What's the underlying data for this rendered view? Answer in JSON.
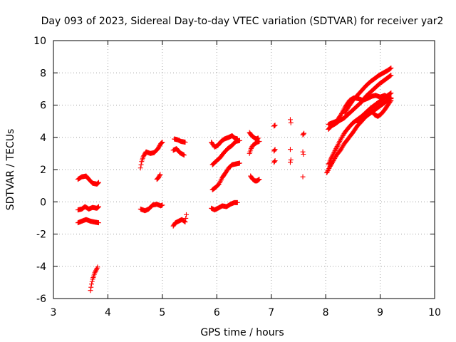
{
  "chart_data": {
    "type": "scatter",
    "title": "Day 093 of 2023, Sidereal Day-to-day VTEC variation (SDTVAR) for receiver yar2",
    "xlabel": "GPS time / hours",
    "ylabel": "SDTVAR / TECUs",
    "xlim": [
      3,
      10
    ],
    "ylim": [
      -6,
      10
    ],
    "xticks": [
      3,
      4,
      5,
      6,
      7,
      8,
      9,
      10
    ],
    "yticks": [
      -6,
      -4,
      -2,
      0,
      2,
      4,
      6,
      8,
      10
    ],
    "grid": true,
    "marker": "plus",
    "color": "#ff0000",
    "segments": [
      [
        [
          3.45,
          1.4
        ],
        [
          3.52,
          1.55
        ],
        [
          3.6,
          1.6
        ],
        [
          3.65,
          1.4
        ],
        [
          3.72,
          1.15
        ],
        [
          3.8,
          1.1
        ],
        [
          3.83,
          1.2
        ]
      ],
      [
        [
          3.45,
          -0.5
        ],
        [
          3.52,
          -0.45
        ],
        [
          3.58,
          -0.3
        ],
        [
          3.65,
          -0.45
        ],
        [
          3.72,
          -0.35
        ],
        [
          3.8,
          -0.4
        ],
        [
          3.83,
          -0.3
        ]
      ],
      [
        [
          3.45,
          -1.3
        ],
        [
          3.52,
          -1.2
        ],
        [
          3.6,
          -1.1
        ],
        [
          3.68,
          -1.2
        ],
        [
          3.75,
          -1.25
        ],
        [
          3.83,
          -1.3
        ]
      ],
      [
        [
          3.68,
          -5.5
        ],
        [
          3.7,
          -5.1
        ],
        [
          3.72,
          -4.8
        ],
        [
          3.74,
          -4.6
        ],
        [
          3.76,
          -4.4
        ],
        [
          3.79,
          -4.2
        ],
        [
          3.81,
          -4.05
        ]
      ],
      [
        [
          4.6,
          2.1
        ],
        [
          4.62,
          2.5
        ],
        [
          4.65,
          2.8
        ],
        [
          4.7,
          3.1
        ],
        [
          4.78,
          3.0
        ],
        [
          4.85,
          3.05
        ],
        [
          4.92,
          3.3
        ],
        [
          4.97,
          3.6
        ],
        [
          5.0,
          3.7
        ]
      ],
      [
        [
          4.9,
          1.4
        ],
        [
          4.93,
          1.5
        ],
        [
          4.96,
          1.7
        ]
      ],
      [
        [
          4.6,
          -0.45
        ],
        [
          4.68,
          -0.55
        ],
        [
          4.75,
          -0.45
        ],
        [
          4.82,
          -0.2
        ],
        [
          4.9,
          -0.15
        ],
        [
          4.97,
          -0.25
        ],
        [
          5.0,
          -0.2
        ]
      ],
      [
        [
          5.22,
          3.9
        ],
        [
          5.28,
          3.85
        ],
        [
          5.34,
          3.75
        ],
        [
          5.42,
          3.7
        ]
      ],
      [
        [
          5.2,
          3.2
        ],
        [
          5.26,
          3.3
        ],
        [
          5.32,
          3.05
        ],
        [
          5.4,
          2.9
        ]
      ],
      [
        [
          5.2,
          -1.5
        ],
        [
          5.24,
          -1.3
        ],
        [
          5.3,
          -1.2
        ],
        [
          5.36,
          -1.1
        ],
        [
          5.42,
          -1.25
        ],
        [
          5.44,
          -0.8
        ]
      ],
      [
        [
          5.9,
          3.7
        ],
        [
          5.96,
          3.4
        ],
        [
          6.02,
          3.5
        ],
        [
          6.08,
          3.75
        ],
        [
          6.14,
          3.9
        ],
        [
          6.22,
          4.0
        ],
        [
          6.28,
          4.1
        ],
        [
          6.33,
          3.95
        ],
        [
          6.38,
          3.9
        ]
      ],
      [
        [
          5.92,
          2.3
        ],
        [
          5.98,
          2.5
        ],
        [
          6.05,
          2.7
        ],
        [
          6.12,
          3.0
        ],
        [
          6.2,
          3.3
        ],
        [
          6.28,
          3.5
        ],
        [
          6.35,
          3.75
        ],
        [
          6.42,
          3.8
        ]
      ],
      [
        [
          5.92,
          0.75
        ],
        [
          5.98,
          0.9
        ],
        [
          6.04,
          1.1
        ],
        [
          6.1,
          1.5
        ],
        [
          6.16,
          1.8
        ],
        [
          6.22,
          2.1
        ],
        [
          6.28,
          2.3
        ],
        [
          6.35,
          2.35
        ],
        [
          6.42,
          2.4
        ]
      ],
      [
        [
          5.9,
          -0.4
        ],
        [
          5.96,
          -0.5
        ],
        [
          6.02,
          -0.4
        ],
        [
          6.1,
          -0.25
        ],
        [
          6.18,
          -0.3
        ],
        [
          6.25,
          -0.15
        ],
        [
          6.32,
          -0.05
        ],
        [
          6.38,
          -0.05
        ]
      ],
      [
        [
          6.6,
          4.3
        ],
        [
          6.64,
          4.1
        ],
        [
          6.68,
          4.0
        ],
        [
          6.72,
          3.9
        ],
        [
          6.76,
          3.95
        ]
      ],
      [
        [
          6.6,
          3.0
        ],
        [
          6.63,
          3.3
        ],
        [
          6.66,
          3.5
        ],
        [
          6.7,
          3.6
        ],
        [
          6.74,
          3.7
        ],
        [
          6.78,
          3.75
        ]
      ],
      [
        [
          6.62,
          1.6
        ],
        [
          6.66,
          1.4
        ],
        [
          6.7,
          1.3
        ],
        [
          6.74,
          1.3
        ],
        [
          6.78,
          1.4
        ]
      ],
      [
        [
          7.05,
          4.7
        ],
        [
          7.07,
          4.75
        ]
      ],
      [
        [
          7.05,
          3.15
        ],
        [
          7.07,
          3.25
        ]
      ],
      [
        [
          7.05,
          2.45
        ],
        [
          7.07,
          2.55
        ]
      ],
      [
        [
          7.35,
          5.1
        ],
        [
          7.36,
          4.9
        ]
      ],
      [
        [
          7.35,
          3.25
        ]
      ],
      [
        [
          7.35,
          2.45
        ],
        [
          7.36,
          2.6
        ]
      ],
      [
        [
          7.58,
          4.15
        ],
        [
          7.6,
          4.25
        ]
      ],
      [
        [
          7.58,
          3.1
        ],
        [
          7.59,
          2.95
        ]
      ],
      [
        [
          7.58,
          1.55
        ]
      ],
      [
        [
          8.05,
          4.8
        ],
        [
          8.12,
          4.9
        ],
        [
          8.2,
          5.0
        ],
        [
          8.28,
          5.4
        ],
        [
          8.36,
          5.9
        ],
        [
          8.44,
          6.3
        ],
        [
          8.52,
          6.45
        ],
        [
          8.6,
          6.4
        ],
        [
          8.68,
          6.3
        ],
        [
          8.76,
          6.4
        ],
        [
          8.85,
          6.55
        ],
        [
          8.92,
          6.6
        ],
        [
          9.0,
          6.5
        ],
        [
          9.08,
          6.6
        ],
        [
          9.15,
          6.5
        ],
        [
          9.2,
          6.4
        ]
      ],
      [
        [
          8.05,
          4.5
        ],
        [
          8.1,
          4.7
        ],
        [
          8.18,
          4.85
        ],
        [
          8.26,
          5.05
        ],
        [
          8.34,
          5.2
        ],
        [
          8.42,
          5.45
        ],
        [
          8.5,
          5.7
        ],
        [
          8.58,
          5.95
        ],
        [
          8.66,
          6.2
        ],
        [
          8.74,
          6.55
        ],
        [
          8.82,
          6.8
        ],
        [
          8.9,
          7.05
        ],
        [
          8.98,
          7.3
        ],
        [
          9.06,
          7.5
        ],
        [
          9.14,
          7.7
        ],
        [
          9.2,
          7.85
        ]
      ],
      [
        [
          8.05,
          2.3
        ],
        [
          8.1,
          2.7
        ],
        [
          8.16,
          3.1
        ],
        [
          8.22,
          3.5
        ],
        [
          8.28,
          3.9
        ],
        [
          8.35,
          4.3
        ],
        [
          8.42,
          4.6
        ],
        [
          8.5,
          4.9
        ],
        [
          8.58,
          5.1
        ],
        [
          8.66,
          5.3
        ],
        [
          8.74,
          5.55
        ],
        [
          8.82,
          5.8
        ],
        [
          8.9,
          6.0
        ],
        [
          8.98,
          6.2
        ],
        [
          9.06,
          6.4
        ],
        [
          9.14,
          6.6
        ],
        [
          9.2,
          6.75
        ]
      ],
      [
        [
          8.02,
          1.8
        ],
        [
          8.08,
          2.2
        ],
        [
          8.14,
          2.55
        ],
        [
          8.2,
          2.9
        ],
        [
          8.27,
          3.2
        ],
        [
          8.34,
          3.6
        ],
        [
          8.42,
          3.95
        ],
        [
          8.5,
          4.3
        ],
        [
          8.58,
          4.7
        ],
        [
          8.66,
          5.0
        ],
        [
          8.74,
          5.3
        ],
        [
          8.82,
          5.5
        ],
        [
          8.9,
          5.7
        ],
        [
          8.98,
          5.9
        ],
        [
          9.06,
          6.1
        ],
        [
          9.14,
          6.3
        ],
        [
          9.2,
          6.45
        ]
      ],
      [
        [
          8.35,
          5.5
        ],
        [
          8.42,
          5.9
        ],
        [
          8.5,
          6.3
        ],
        [
          8.58,
          6.6
        ],
        [
          8.66,
          6.9
        ],
        [
          8.74,
          7.2
        ],
        [
          8.82,
          7.45
        ],
        [
          8.9,
          7.65
        ],
        [
          8.98,
          7.85
        ],
        [
          9.06,
          8.0
        ],
        [
          9.14,
          8.15
        ],
        [
          9.2,
          8.3
        ]
      ],
      [
        [
          8.6,
          4.9
        ],
        [
          8.66,
          5.1
        ],
        [
          8.72,
          5.3
        ],
        [
          8.78,
          5.5
        ],
        [
          8.84,
          5.65
        ],
        [
          8.9,
          5.4
        ],
        [
          8.96,
          5.3
        ],
        [
          9.02,
          5.45
        ],
        [
          9.08,
          5.7
        ],
        [
          9.14,
          6.0
        ],
        [
          9.2,
          6.3
        ]
      ]
    ]
  }
}
